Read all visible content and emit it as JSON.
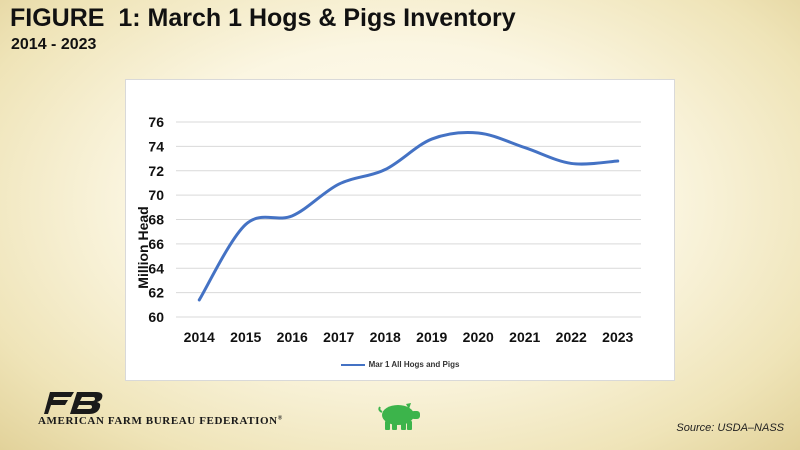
{
  "figure": {
    "title": "FIGURE  1: March 1 Hogs & Pigs Inventory",
    "subtitle": "2014 - 2023"
  },
  "chart_data": {
    "type": "line",
    "x": [
      2014,
      2015,
      2016,
      2017,
      2018,
      2019,
      2020,
      2021,
      2022,
      2023
    ],
    "series": [
      {
        "name": "Mar 1 All Hogs and Pigs",
        "values": [
          61.4,
          67.6,
          68.3,
          70.9,
          72.1,
          74.6,
          75.1,
          73.9,
          72.6,
          72.8
        ],
        "color": "#4472c4"
      }
    ],
    "title": "",
    "xlabel": "",
    "ylabel": "Million Head",
    "ylim": [
      60,
      76
    ],
    "yticks": [
      60,
      62,
      64,
      66,
      68,
      70,
      72,
      74,
      76
    ],
    "grid": true,
    "legend": "bottom"
  },
  "footer": {
    "organization": "AMERICAN FARM BUREAU FEDERATION",
    "registered_mark": "®",
    "source": "Source: USDA–NASS",
    "logo_icon": "fb-logo-icon",
    "pig_icon": "pig-icon",
    "logo_color": "#1a1a1a",
    "pig_color": "#3cb44b"
  }
}
